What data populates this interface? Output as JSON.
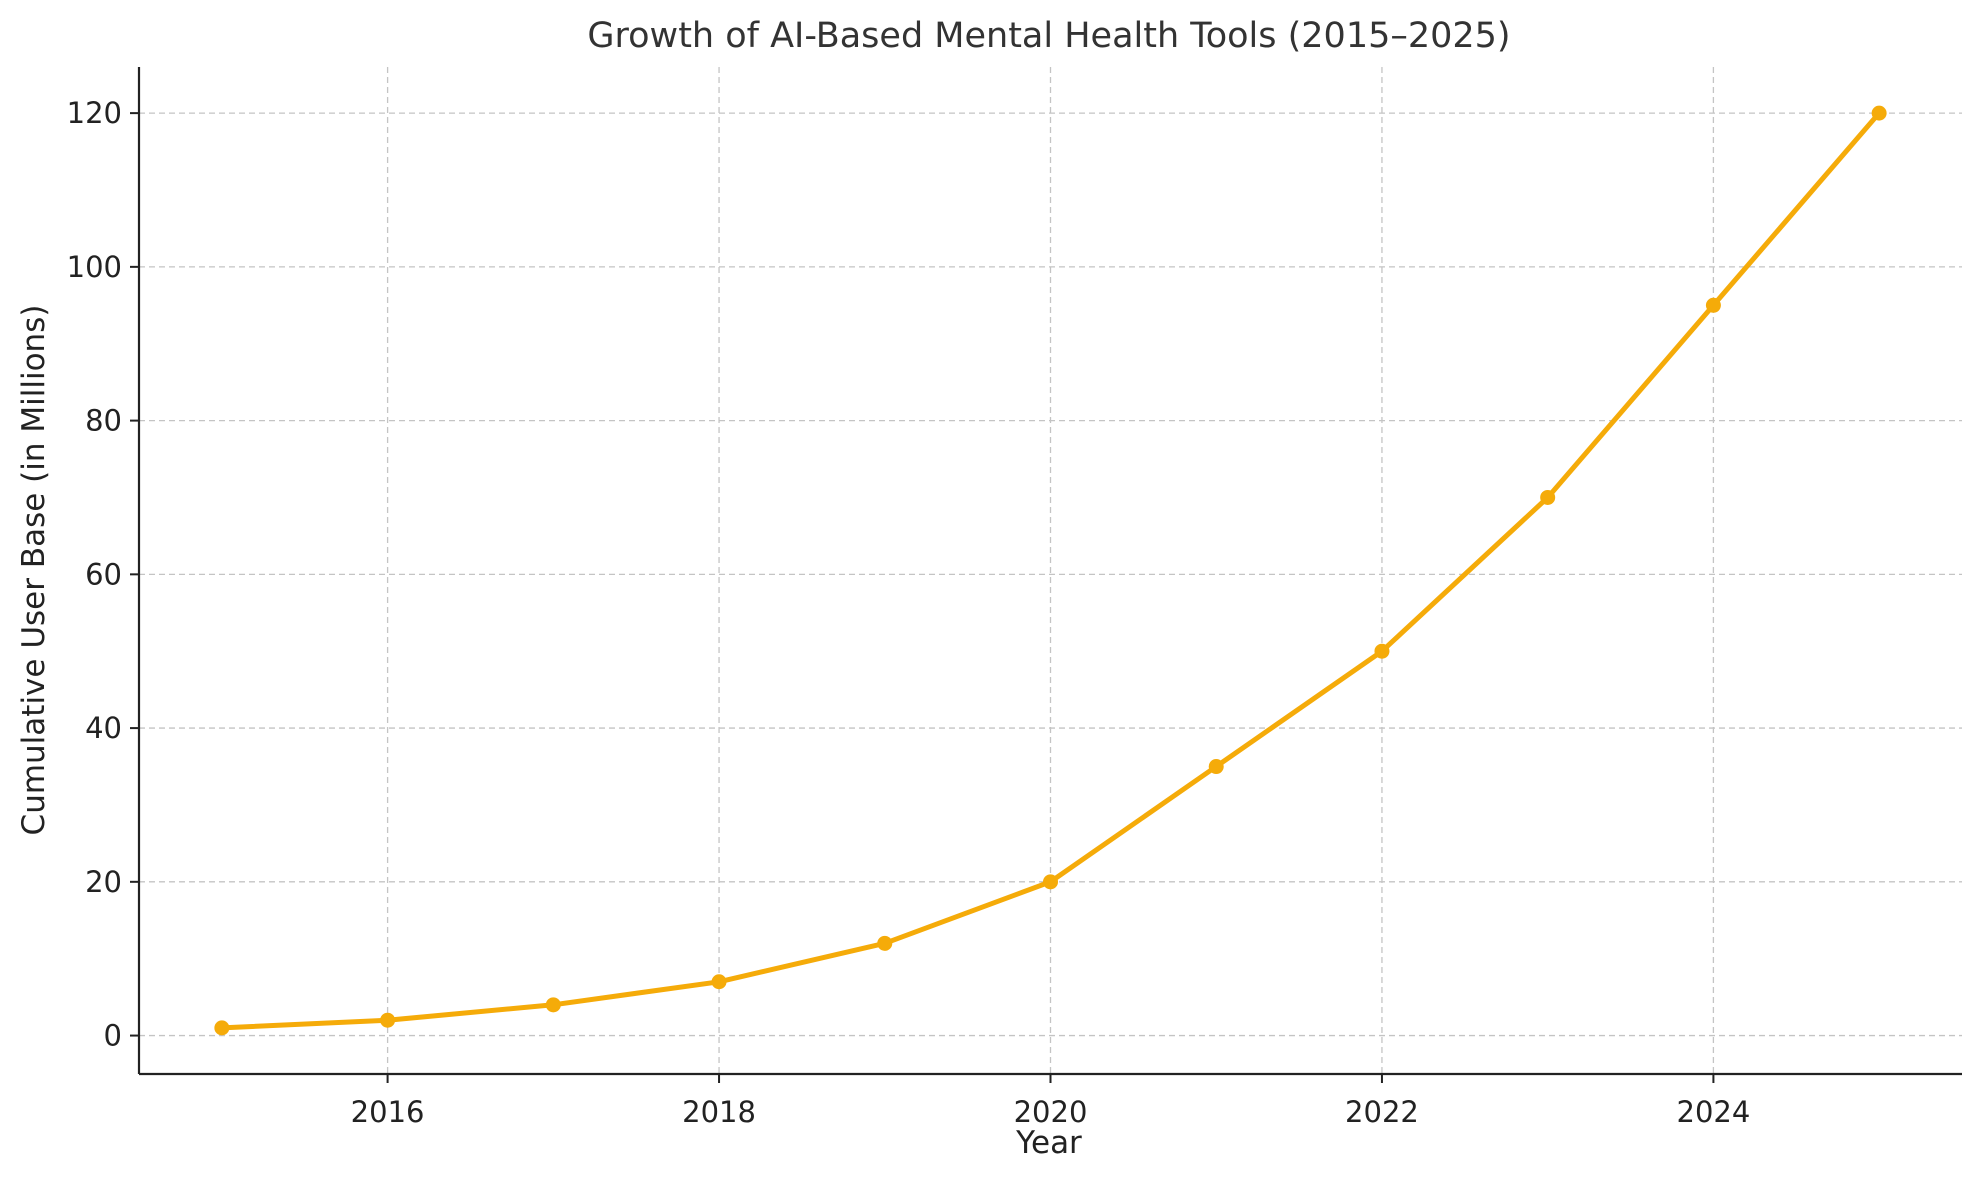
{
  "chart_data": {
    "type": "line",
    "title": "Growth of AI-Based Mental Health Tools (2015–2025)",
    "xlabel": "Year",
    "ylabel": "Cumulative User Base (in Millions)",
    "x": [
      2015,
      2016,
      2017,
      2018,
      2019,
      2020,
      2021,
      2022,
      2023,
      2024,
      2025
    ],
    "series": [
      {
        "values": [
          1,
          2,
          4,
          7,
          12,
          20,
          35,
          50,
          70,
          95,
          120
        ]
      }
    ],
    "xlim": [
      2014.5,
      2025.5
    ],
    "ylim": [
      -5,
      126
    ],
    "xticks": [
      2016,
      2018,
      2020,
      2022,
      2024
    ],
    "yticks": [
      0,
      20,
      40,
      60,
      80,
      100,
      120
    ],
    "grid": true,
    "line_color": "#f5ab09"
  }
}
